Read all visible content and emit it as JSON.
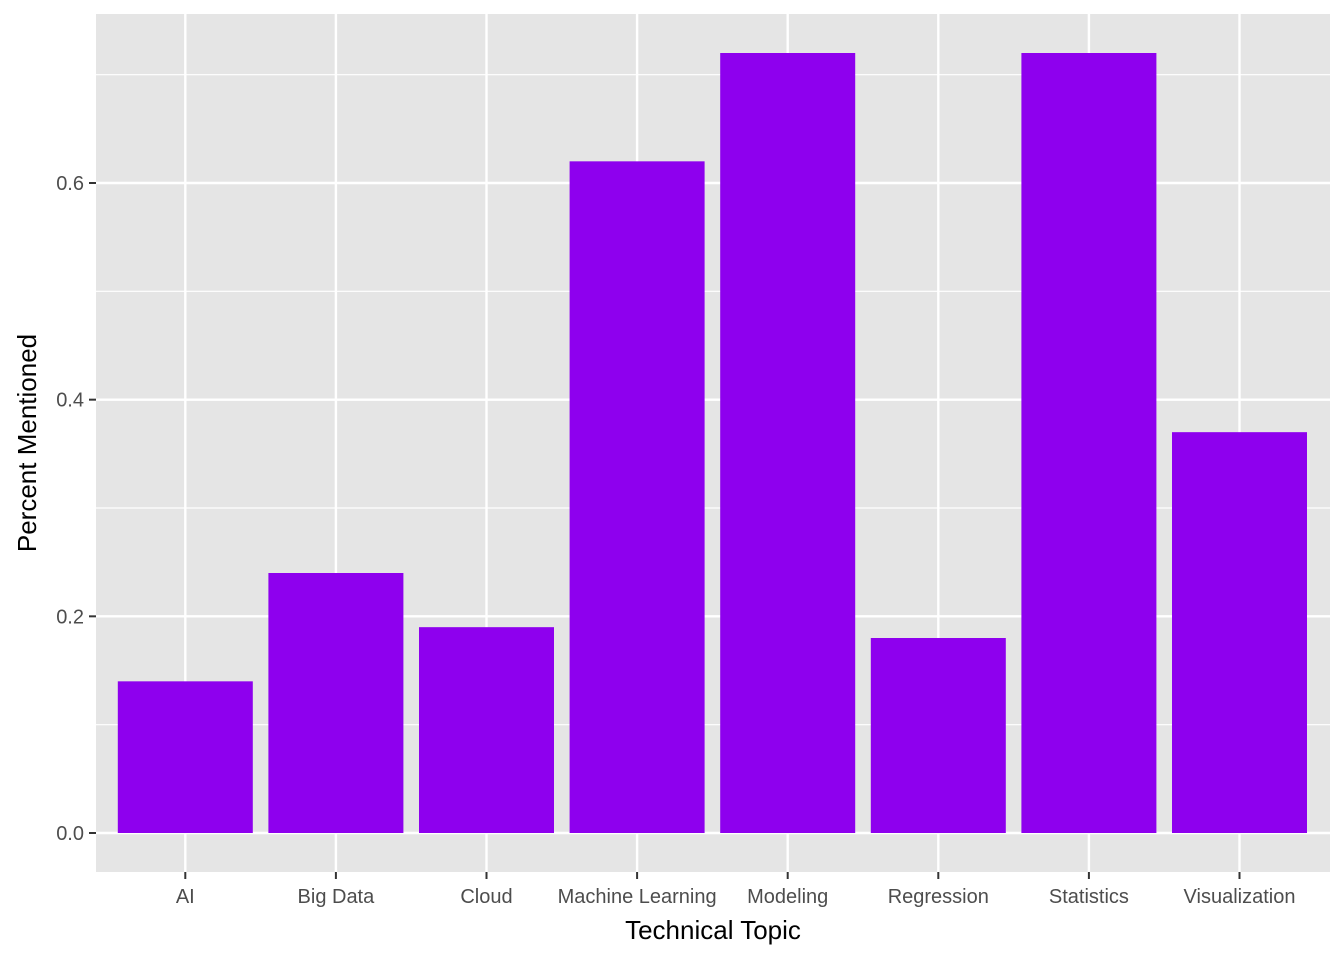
{
  "colors": {
    "panel_background": "#e5e5e5",
    "grid_line": "#ffffff",
    "bar_fill": "#8e00ee",
    "tick_mark": "#333333",
    "tick_label": "#4d4d4d",
    "axis_title": "#000000"
  },
  "chart_data": {
    "type": "bar",
    "title": "",
    "xlabel": "Technical Topic",
    "ylabel": "Percent Mentioned",
    "categories": [
      "AI",
      "Big Data",
      "Cloud",
      "Machine Learning",
      "Modeling",
      "Regression",
      "Statistics",
      "Visualization"
    ],
    "values": [
      0.14,
      0.24,
      0.19,
      0.62,
      0.72,
      0.18,
      0.72,
      0.37
    ],
    "ylim": [
      -0.036,
      0.756
    ],
    "yticks": [
      0.0,
      0.2,
      0.4,
      0.6
    ],
    "ytick_labels": [
      "0.0",
      "0.2",
      "0.4",
      "0.6"
    ],
    "grid": true,
    "legend": "none"
  }
}
